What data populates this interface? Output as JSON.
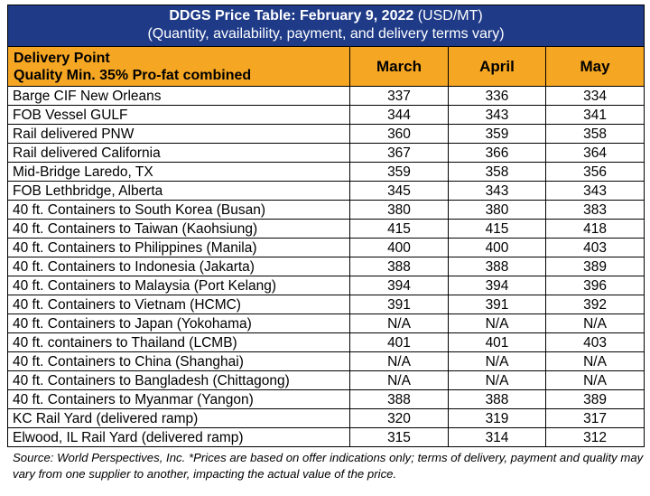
{
  "title": {
    "bold": "DDGS Price Table: February 9, 2022",
    "unit": "(USD/MT)",
    "subtitle": "(Quantity, availability, payment, and delivery terms vary)"
  },
  "header": {
    "line1": "Delivery Point",
    "line2": "Quality Min. 35% Pro-fat combined",
    "months": [
      "March",
      "April",
      "May"
    ]
  },
  "rows": [
    {
      "point": "Barge CIF New Orleans",
      "march": "337",
      "april": "336",
      "may": "334"
    },
    {
      "point": "FOB Vessel GULF",
      "march": "344",
      "april": "343",
      "may": "341"
    },
    {
      "point": "Rail delivered PNW",
      "march": "360",
      "april": "359",
      "may": "358"
    },
    {
      "point": "Rail delivered California",
      "march": "367",
      "april": "366",
      "may": "364"
    },
    {
      "point": "Mid-Bridge Laredo, TX",
      "march": "359",
      "april": "358",
      "may": "356"
    },
    {
      "point": "FOB Lethbridge, Alberta",
      "march": "345",
      "april": "343",
      "may": "343"
    },
    {
      "point": "40 ft. Containers to South Korea (Busan)",
      "march": "380",
      "april": "380",
      "may": "383"
    },
    {
      "point": "40 ft. Containers to Taiwan (Kaohsiung)",
      "march": "415",
      "april": "415",
      "may": "418"
    },
    {
      "point": "40 ft. Containers to Philippines (Manila)",
      "march": "400",
      "april": "400",
      "may": "403"
    },
    {
      "point": "40 ft. Containers to Indonesia (Jakarta)",
      "march": "388",
      "april": "388",
      "may": "389"
    },
    {
      "point": "40 ft. Containers to Malaysia (Port Kelang)",
      "march": "394",
      "april": "394",
      "may": "396"
    },
    {
      "point": "40 ft. Containers to Vietnam (HCMC)",
      "march": "391",
      "april": "391",
      "may": "392"
    },
    {
      "point": "40 ft. Containers to Japan (Yokohama)",
      "march": "N/A",
      "april": "N/A",
      "may": "N/A"
    },
    {
      "point": "40 ft. containers to Thailand (LCMB)",
      "march": "401",
      "april": "401",
      "may": "403"
    },
    {
      "point": "40 ft. Containers to China (Shanghai)",
      "march": "N/A",
      "april": "N/A",
      "may": "N/A"
    },
    {
      "point": "40 ft. Containers to Bangladesh (Chittagong)",
      "march": "N/A",
      "april": "N/A",
      "may": "N/A"
    },
    {
      "point": "40 ft. Containers to Myanmar (Yangon)",
      "march": "388",
      "april": "388",
      "may": "389"
    },
    {
      "point": "KC Rail Yard (delivered ramp)",
      "march": "320",
      "april": "319",
      "may": "317"
    },
    {
      "point": "Elwood, IL Rail Yard (delivered ramp)",
      "march": "315",
      "april": "314",
      "may": "312"
    }
  ],
  "footnote": "Source: World Perspectives, Inc. *Prices are based on offer indications only; terms of delivery, payment and quality may vary from one supplier to another, impacting the actual value of the price.",
  "colors": {
    "title_bg": "#1f3b88",
    "header_bg": "#f5a623"
  }
}
